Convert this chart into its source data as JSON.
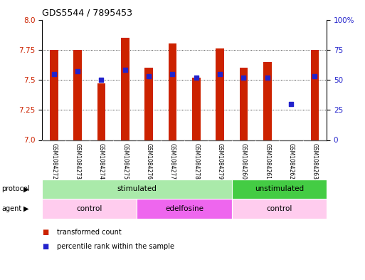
{
  "title": "GDS5544 / 7895453",
  "samples": [
    "GSM1084272",
    "GSM1084273",
    "GSM1084274",
    "GSM1084275",
    "GSM1084276",
    "GSM1084277",
    "GSM1084278",
    "GSM1084279",
    "GSM1084260",
    "GSM1084261",
    "GSM1084262",
    "GSM1084263"
  ],
  "transformed_count": [
    7.75,
    7.75,
    7.47,
    7.85,
    7.6,
    7.8,
    7.52,
    7.76,
    7.6,
    7.65,
    7.0,
    7.75
  ],
  "percentile_rank": [
    55,
    57,
    50,
    58,
    53,
    55,
    52,
    55,
    52,
    52,
    30,
    53
  ],
  "ylim_left": [
    7.0,
    8.0
  ],
  "ylim_right": [
    0,
    100
  ],
  "yticks_left": [
    7.0,
    7.25,
    7.5,
    7.75,
    8.0
  ],
  "yticks_right": [
    0,
    25,
    50,
    75,
    100
  ],
  "protocol_groups": [
    {
      "label": "stimulated",
      "start": 0,
      "end": 8,
      "color": "#AAEAAA"
    },
    {
      "label": "unstimulated",
      "start": 8,
      "end": 12,
      "color": "#44CC44"
    }
  ],
  "agent_groups": [
    {
      "label": "control",
      "start": 0,
      "end": 4,
      "color": "#FFCCEE"
    },
    {
      "label": "edelfosine",
      "start": 4,
      "end": 8,
      "color": "#EE66EE"
    },
    {
      "label": "control",
      "start": 8,
      "end": 12,
      "color": "#FFCCEE"
    }
  ],
  "bar_color": "#CC2200",
  "dot_color": "#2222CC",
  "bar_bottom": 7.0,
  "background_color": "#ffffff",
  "plot_bg": "#ffffff",
  "tick_label_color_left": "#CC2200",
  "tick_label_color_right": "#2222CC",
  "sample_bg": "#C8C8C8",
  "bar_width": 0.35
}
